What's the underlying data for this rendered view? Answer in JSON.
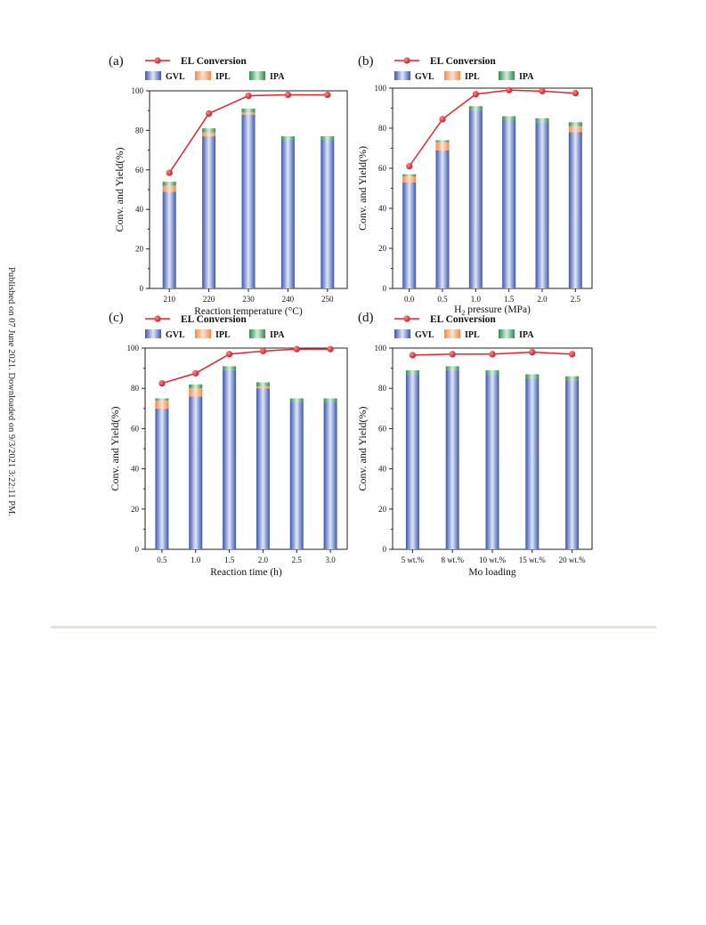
{
  "side_note": "Published on 07 June 2021. Downloaded on 9/3/2021 3:22:11 PM.",
  "colors": {
    "gvl": "#4f6fc6",
    "ipl": "#f4a56e",
    "ipa": "#4aa868",
    "conversion": "#e0242c"
  },
  "legend": {
    "conversion": "EL Conversion",
    "gvl": "GVL",
    "ipl": "IPL",
    "ipa": "IPA"
  },
  "chart_data": [
    {
      "panel": "(a)",
      "type": "bar",
      "categories": [
        "210",
        "220",
        "230",
        "240",
        "250"
      ],
      "series": [
        {
          "name": "GVL",
          "values": [
            49,
            77,
            88,
            75,
            75
          ]
        },
        {
          "name": "IPL",
          "values": [
            3,
            2,
            1,
            0,
            0
          ]
        },
        {
          "name": "IPA",
          "values": [
            2,
            2,
            2,
            2,
            2
          ]
        },
        {
          "name": "EL Conversion",
          "type": "line",
          "values": [
            58.5,
            88.5,
            97.5,
            98,
            98
          ]
        }
      ],
      "xlabel": "Reaction temperature (°C)",
      "ylabel": "Conv. and Yield(%)",
      "ylim": [
        0,
        100
      ],
      "yticks": [
        "0",
        "20",
        "40",
        "60",
        "80",
        "100"
      ]
    },
    {
      "panel": "(b)",
      "type": "bar",
      "categories": [
        "0.0",
        "0.5",
        "1.0",
        "1.5",
        "2.0",
        "2.5"
      ],
      "series": [
        {
          "name": "GVL",
          "values": [
            53,
            69,
            89,
            84,
            83,
            78
          ]
        },
        {
          "name": "IPL",
          "values": [
            3,
            4,
            0,
            0,
            0,
            3
          ]
        },
        {
          "name": "IPA",
          "values": [
            1,
            1,
            2,
            2,
            2,
            2
          ]
        },
        {
          "name": "EL Conversion",
          "type": "line",
          "values": [
            61,
            84.5,
            97,
            99,
            98.5,
            97.5
          ]
        }
      ],
      "xlabel_main": "H",
      "xlabel_sub": "2",
      "xlabel_rest": " pressure (MPa)",
      "ylabel": "Conv. and Yield(%)",
      "ylim": [
        0,
        100
      ],
      "yticks": [
        "0",
        "20",
        "40",
        "60",
        "80",
        "100"
      ]
    },
    {
      "panel": "(c)",
      "type": "bar",
      "categories": [
        "0.5",
        "1.0",
        "1.5",
        "2.0",
        "2.5",
        "3.0"
      ],
      "series": [
        {
          "name": "GVL",
          "values": [
            70,
            76,
            89,
            80,
            73,
            73
          ]
        },
        {
          "name": "IPL",
          "values": [
            4,
            4,
            0,
            1,
            0,
            0
          ]
        },
        {
          "name": "IPA",
          "values": [
            1,
            2,
            2,
            2,
            2,
            2
          ]
        },
        {
          "name": "EL Conversion",
          "type": "line",
          "values": [
            82.5,
            87.5,
            97,
            98.5,
            99.5,
            99.5
          ]
        }
      ],
      "xlabel": "Reaction time (h)",
      "ylabel": "Conv. and Yield(%)",
      "ylim": [
        0,
        100
      ],
      "yticks": [
        "0",
        "20",
        "40",
        "60",
        "80",
        "100"
      ]
    },
    {
      "panel": "(d)",
      "type": "bar",
      "categories": [
        "5 wt.%",
        "8 wt.%",
        "10 wt.%",
        "15 wt.%",
        "20 wt.%"
      ],
      "series": [
        {
          "name": "GVL",
          "values": [
            87,
            89,
            87,
            85,
            84
          ]
        },
        {
          "name": "IPL",
          "values": [
            0,
            0,
            0,
            0,
            0
          ]
        },
        {
          "name": "IPA",
          "values": [
            2,
            2,
            2,
            2,
            2
          ]
        },
        {
          "name": "EL Conversion",
          "type": "line",
          "values": [
            96.5,
            97,
            97,
            98,
            97
          ]
        }
      ],
      "xlabel": "Mo loading",
      "ylabel": "Conv. and Yield(%)",
      "ylim": [
        0,
        100
      ],
      "yticks": [
        "0",
        "20",
        "40",
        "60",
        "80",
        "100"
      ]
    }
  ]
}
